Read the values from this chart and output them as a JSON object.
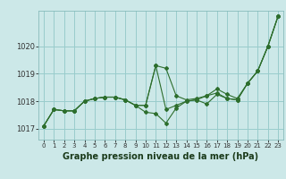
{
  "background_color": "#cce8e8",
  "grid_color": "#99cccc",
  "line_color": "#2d6e2d",
  "title": "Graphe pression niveau de la mer (hPa)",
  "ylim": [
    1016.6,
    1021.3
  ],
  "xlim": [
    -0.5,
    23.5
  ],
  "yticks": [
    1017,
    1018,
    1019,
    1020
  ],
  "xticks": [
    0,
    1,
    2,
    3,
    4,
    5,
    6,
    7,
    8,
    9,
    10,
    11,
    12,
    13,
    14,
    15,
    16,
    17,
    18,
    19,
    20,
    21,
    22,
    23
  ],
  "series": [
    [
      1017.1,
      1017.7,
      1017.65,
      1017.65,
      1018.0,
      1018.1,
      1018.15,
      1018.15,
      1018.05,
      1017.85,
      1017.85,
      1019.3,
      1017.7,
      1017.85,
      1018.0,
      1018.05,
      1017.9,
      1018.25,
      1018.1,
      1018.05,
      1018.65,
      1019.1,
      1020.0,
      1021.1
    ],
    [
      1017.1,
      1017.7,
      1017.65,
      1017.65,
      1018.0,
      1018.1,
      1018.15,
      1018.15,
      1018.05,
      1017.85,
      1017.6,
      1017.55,
      1017.2,
      1017.75,
      1018.0,
      1018.05,
      1018.2,
      1018.3,
      1018.1,
      1018.05,
      1018.65,
      1019.1,
      1020.0,
      1021.1
    ],
    [
      1017.1,
      1017.7,
      1017.65,
      1017.65,
      1018.0,
      1018.1,
      1018.15,
      1018.15,
      1018.05,
      1017.85,
      1017.85,
      1019.3,
      1019.2,
      1018.2,
      1018.05,
      1018.1,
      1018.2,
      1018.45,
      1018.25,
      1018.1,
      1018.65,
      1019.1,
      1020.0,
      1021.1
    ]
  ],
  "figsize": [
    3.2,
    2.0
  ],
  "dpi": 100
}
